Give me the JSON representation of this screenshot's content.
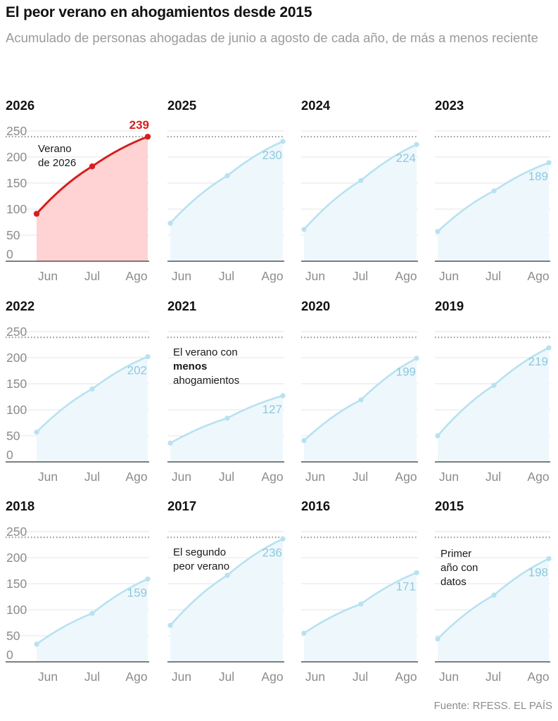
{
  "title": "El peor verano en ahogamientos desde 2015",
  "subtitle": "Acumulado de personas ahogadas de junio a agosto de cada año, de más a menos reciente",
  "source": "Fuente: RFESS. EL PAÍS",
  "colors": {
    "highlight_line": "#d51f1f",
    "highlight_fill": "#ffd3d3",
    "line": "#b8e1f1",
    "fill": "#eef8fc",
    "label": "#8ec8df",
    "reference_line": "#9a9a9a",
    "grid": "#e6e6e6",
    "axis": "#333333"
  },
  "chart_data": {
    "type": "line",
    "layout": "small-multiples",
    "categories": [
      "Jun",
      "Jul",
      "Ago"
    ],
    "yticks": [
      0,
      50,
      100,
      150,
      200,
      250
    ],
    "ylim": [
      0,
      250
    ],
    "reference_line": 239,
    "series": [
      {
        "name": "2026",
        "values": [
          91,
          182,
          239
        ],
        "label": "239",
        "highlight": true,
        "annotation": [
          [
            {
              "t": "Verano"
            }
          ],
          [
            {
              "t": "de 2026"
            }
          ]
        ]
      },
      {
        "name": "2025",
        "values": [
          73,
          164,
          230
        ],
        "label": "230"
      },
      {
        "name": "2024",
        "values": [
          61,
          155,
          224
        ],
        "label": "224"
      },
      {
        "name": "2023",
        "values": [
          57,
          135,
          189
        ],
        "label": "189"
      },
      {
        "name": "2022",
        "values": [
          57,
          140,
          202
        ],
        "label": "202"
      },
      {
        "name": "2021",
        "values": [
          36,
          84,
          127
        ],
        "label": "127",
        "annotation": [
          [
            {
              "t": "El verano con"
            }
          ],
          [
            {
              "t": "menos",
              "b": true
            }
          ],
          [
            {
              "t": "ahogamientos"
            }
          ]
        ]
      },
      {
        "name": "2020",
        "values": [
          41,
          119,
          199
        ],
        "label": "199"
      },
      {
        "name": "2019",
        "values": [
          50,
          147,
          219
        ],
        "label": "219"
      },
      {
        "name": "2018",
        "values": [
          34,
          93,
          159
        ],
        "label": "159"
      },
      {
        "name": "2017",
        "values": [
          70,
          166,
          236
        ],
        "label": "236",
        "annotation": [
          [
            {
              "t": "El segundo"
            }
          ],
          [
            {
              "t": "peor verano"
            }
          ]
        ]
      },
      {
        "name": "2016",
        "values": [
          55,
          111,
          171
        ],
        "label": "171"
      },
      {
        "name": "2015",
        "values": [
          44,
          128,
          198
        ],
        "label": "198",
        "annotation": [
          [
            {
              "t": "Primer"
            }
          ],
          [
            {
              "t": "año con"
            }
          ],
          [
            {
              "t": "datos"
            }
          ]
        ]
      }
    ]
  }
}
